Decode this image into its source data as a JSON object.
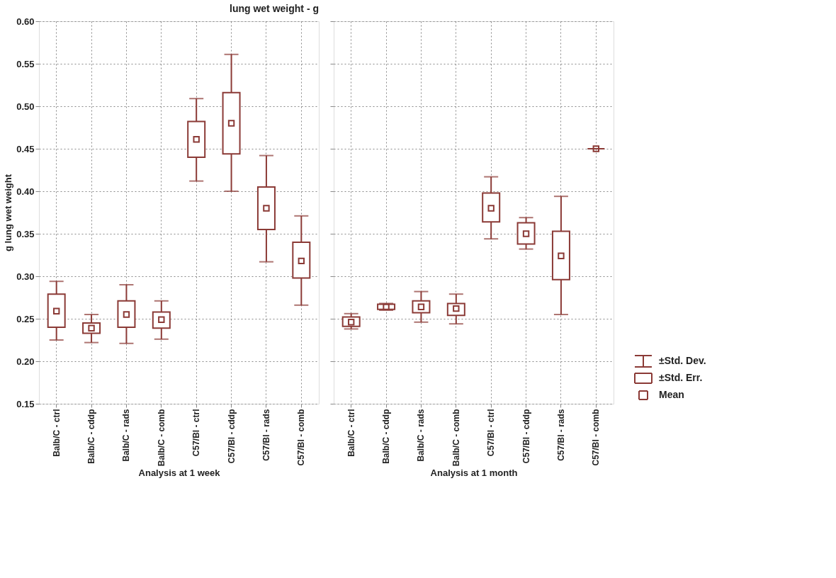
{
  "chart_data": [
    {
      "type": "box",
      "title": "lung wet weight - g",
      "xlabel": "Analysis at 1 week",
      "ylabel": "g lung wet weight",
      "categories": [
        "Balb/C - ctrl",
        "Balb/C - cddp",
        "Balb/C - rads",
        "Balb/C - comb",
        "C57/Bl - ctrl",
        "C57/Bl - cddp",
        "C57/Bl - rads",
        "C57/Bl - comb"
      ],
      "ylim": [
        0.15,
        0.6
      ],
      "yticks": [
        0.15,
        {
          "value": 0.2,
          "label": "0.20"
        },
        0.25,
        {
          "value": 0.3,
          "label": "0.30"
        },
        0.35,
        {
          "value": 0.4,
          "label": "0.40"
        },
        0.45,
        {
          "value": 0.5,
          "label": "0.50"
        },
        0.55,
        {
          "value": 0.6,
          "label": "0.60"
        }
      ],
      "grid": true,
      "series": [
        {
          "color": "#8b3a36",
          "boxes": [
            {
              "low": 0.225,
              "q1": 0.24,
              "q3": 0.279,
              "high": 0.294,
              "mean": 0.259
            },
            {
              "low": 0.222,
              "q1": 0.233,
              "q3": 0.245,
              "high": 0.255,
              "mean": 0.239
            },
            {
              "low": 0.221,
              "q1": 0.24,
              "q3": 0.271,
              "high": 0.29,
              "mean": 0.255
            },
            {
              "low": 0.226,
              "q1": 0.239,
              "q3": 0.258,
              "high": 0.271,
              "mean": 0.249
            },
            {
              "low": 0.412,
              "q1": 0.44,
              "q3": 0.482,
              "high": 0.509,
              "mean": 0.461
            },
            {
              "low": 0.4,
              "q1": 0.444,
              "q3": 0.516,
              "high": 0.561,
              "mean": 0.48
            },
            {
              "low": 0.317,
              "q1": 0.355,
              "q3": 0.405,
              "high": 0.442,
              "mean": 0.38
            },
            {
              "low": 0.266,
              "q1": 0.298,
              "q3": 0.34,
              "high": 0.371,
              "mean": 0.318
            }
          ]
        }
      ]
    },
    {
      "type": "box",
      "xlabel": "Analysis at 1 month",
      "categories": [
        "Balb/C - ctrl",
        "Balb/C - cddp",
        "Balb/C - rads",
        "Balb/C - comb",
        "C57/Bl - ctrl",
        "C57/Bl - cddp",
        "C57/Bl - rads",
        "C57/Bl - comb"
      ],
      "ylim": [
        0.15,
        0.6
      ],
      "yticks": [
        0.15,
        0.2,
        0.25,
        0.3,
        0.35,
        0.4,
        0.45,
        0.5,
        0.55,
        0.6
      ],
      "tick_labels": "x",
      "grid": true,
      "annotations": [
        "±Std. Dev.",
        "±Std. Err.",
        "Mean"
      ],
      "series": [
        {
          "color": "#8b3a36",
          "boxes": [
            {
              "low": 0.238,
              "q1": 0.241,
              "q3": 0.252,
              "high": 0.256,
              "mean": 0.246
            },
            {
              "low": 0.26,
              "q1": 0.261,
              "q3": 0.267,
              "high": 0.268,
              "mean": 0.264
            },
            {
              "low": 0.246,
              "q1": 0.257,
              "q3": 0.271,
              "high": 0.282,
              "mean": 0.264
            },
            {
              "low": 0.244,
              "q1": 0.254,
              "q3": 0.268,
              "high": 0.279,
              "mean": 0.262
            },
            {
              "low": 0.344,
              "q1": 0.364,
              "q3": 0.398,
              "high": 0.417,
              "mean": 0.38
            },
            {
              "low": 0.332,
              "q1": 0.338,
              "q3": 0.363,
              "high": 0.369,
              "mean": 0.35
            },
            {
              "low": 0.255,
              "q1": 0.296,
              "q3": 0.353,
              "high": 0.394,
              "mean": 0.324
            },
            {
              "low": 0.45,
              "q1": 0.45,
              "q3": 0.45,
              "high": 0.45,
              "mean": 0.45
            }
          ]
        }
      ]
    }
  ]
}
